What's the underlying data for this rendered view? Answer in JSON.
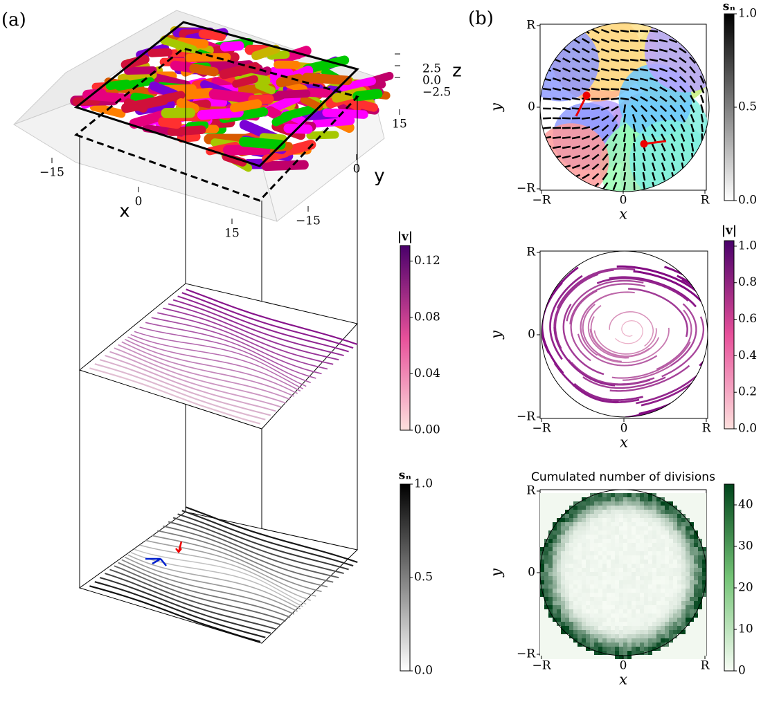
{
  "panel_a": {
    "label": "(a)",
    "x_label": "x",
    "y_label": "y",
    "z_label": "z",
    "xticks": [
      {
        "value": -15,
        "label": "−15"
      },
      0,
      15
    ],
    "yticks": [
      {
        "value": -15,
        "label": "−15"
      },
      0,
      15
    ],
    "zticks": [
      {
        "value": -2.5,
        "label": "−2.5"
      },
      {
        "value": 0,
        "label": "0.0"
      },
      2.5
    ],
    "velocity_colorbar": {
      "label": "|v|",
      "lim": [
        0,
        0.131
      ],
      "ticks": [
        {
          "value": 0,
          "label": "0.00"
        },
        {
          "value": 0.04,
          "label": "0.04"
        },
        {
          "value": 0.08,
          "label": "0.08"
        },
        {
          "value": 0.12,
          "label": "0.12"
        }
      ]
    },
    "order_colorbar": {
      "label": "sₙ",
      "lim": [
        0,
        1
      ],
      "ticks": [
        {
          "value": 0,
          "label": "0.0"
        },
        {
          "value": 0.5,
          "label": "0.5"
        },
        {
          "value": 1,
          "label": "1.0"
        }
      ]
    }
  },
  "panel_b": {
    "label": "(b)",
    "plots": [
      {
        "x_label": "x",
        "y_label": "y",
        "xticks": [
          "−R",
          "0",
          "R"
        ],
        "yticks": [
          "−R",
          "0",
          "R"
        ],
        "colorbar": {
          "label": "sₙ",
          "lim": [
            0,
            1
          ],
          "ticks": [
            {
              "value": 0,
              "label": "0.0"
            },
            {
              "value": 0.5,
              "label": "0.5"
            },
            {
              "value": 1,
              "label": "1.0"
            }
          ]
        }
      },
      {
        "x_label": "x",
        "y_label": "y",
        "xticks": [
          "−R",
          "0",
          "R"
        ],
        "yticks": [
          "−R",
          "0",
          "R"
        ],
        "colorbar": {
          "label": "|v|",
          "lim": [
            0,
            1.03
          ],
          "ticks": [
            {
              "value": 0,
              "label": "0.0"
            },
            {
              "value": 0.2,
              "label": "0.2"
            },
            {
              "value": 0.4,
              "label": "0.4"
            },
            {
              "value": 0.6,
              "label": "0.6"
            },
            {
              "value": 0.8,
              "label": "0.8"
            },
            {
              "value": 1,
              "label": "1.0"
            }
          ]
        }
      },
      {
        "title": "Cumulated number of divisions",
        "x_label": "x",
        "y_label": "y",
        "xticks": [
          "−R",
          "0",
          "R"
        ],
        "yticks": [
          "−R",
          "0",
          "R"
        ],
        "colorbar": {
          "label": "",
          "lim": [
            0,
            45
          ],
          "ticks": [
            0,
            10,
            20,
            30,
            40
          ]
        }
      }
    ]
  }
}
